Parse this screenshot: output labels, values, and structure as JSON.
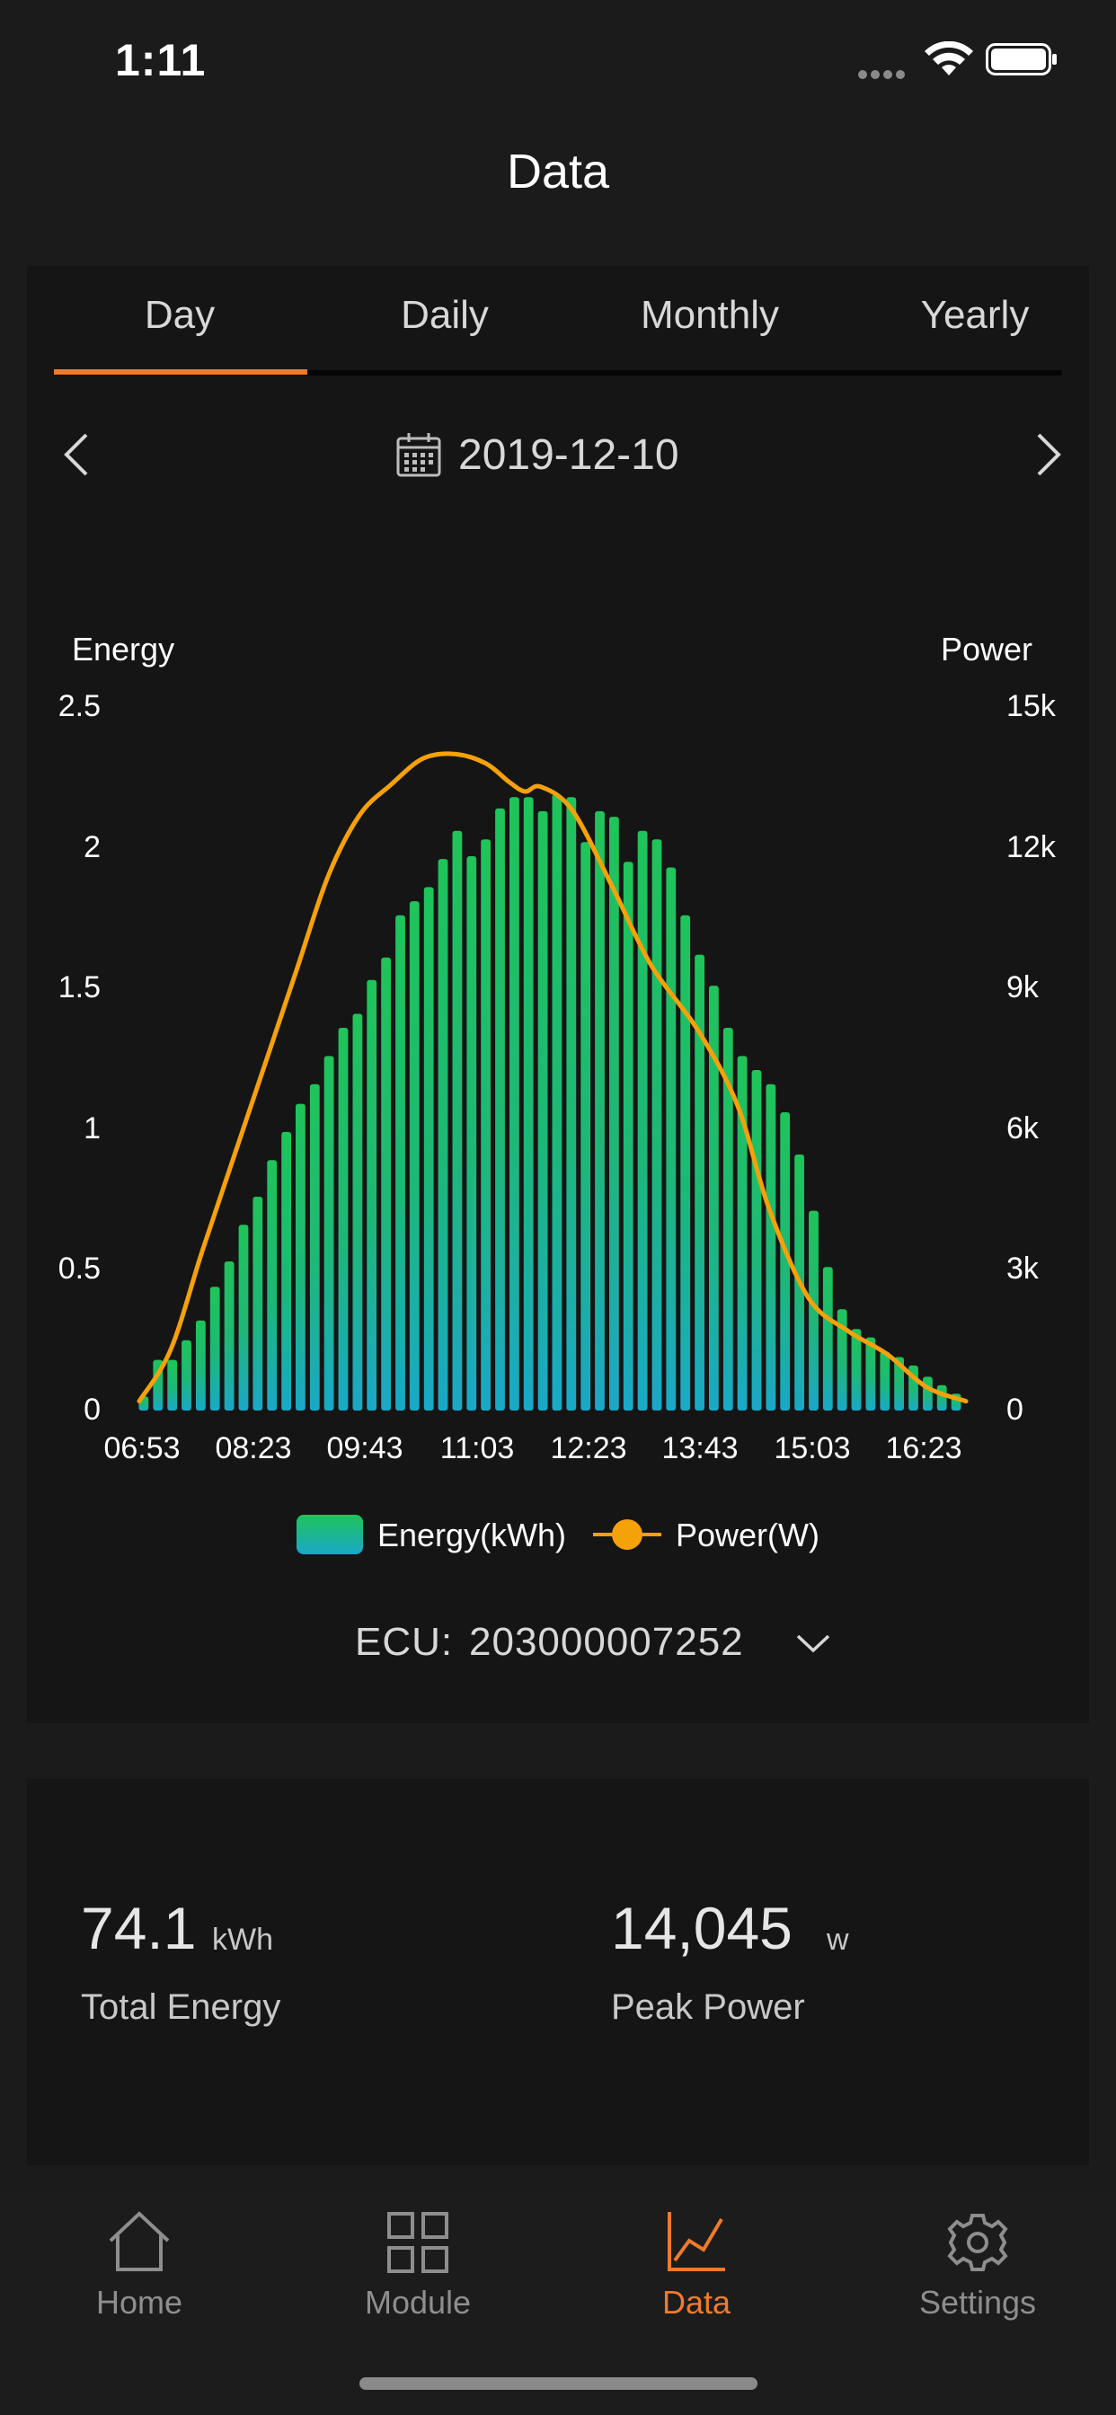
{
  "status_bar": {
    "time": "1:11"
  },
  "header": {
    "title": "Data"
  },
  "tabs": [
    {
      "label": "Day",
      "active": true
    },
    {
      "label": "Daily",
      "active": false
    },
    {
      "label": "Monthly",
      "active": false
    },
    {
      "label": "Yearly",
      "active": false
    }
  ],
  "date_selector": {
    "date": "2019-12-10"
  },
  "chart_data": {
    "type": "bar",
    "left_axis_title": "Energy",
    "right_axis_title": "Power",
    "left_ticks": [
      "0",
      "0.5",
      "1",
      "1.5",
      "2",
      "2.5"
    ],
    "right_ticks": [
      "0",
      "3k",
      "6k",
      "9k",
      "12k",
      "15k"
    ],
    "x_ticks": [
      "06:53",
      "08:23",
      "09:43",
      "11:03",
      "12:23",
      "13:43",
      "15:03",
      "16:23"
    ],
    "ylim_left": [
      0,
      2.5
    ],
    "ylim_right": [
      0,
      15000
    ],
    "series": [
      {
        "name": "Energy(kWh)",
        "type": "bar",
        "axis": "left",
        "values": [
          0.05,
          0.18,
          0.18,
          0.25,
          0.32,
          0.44,
          0.53,
          0.66,
          0.76,
          0.89,
          0.99,
          1.09,
          1.16,
          1.26,
          1.36,
          1.41,
          1.53,
          1.61,
          1.76,
          1.81,
          1.86,
          1.96,
          2.06,
          1.97,
          2.03,
          2.14,
          2.18,
          2.18,
          2.13,
          2.19,
          2.18,
          2.02,
          2.13,
          2.11,
          1.95,
          2.06,
          2.03,
          1.93,
          1.76,
          1.62,
          1.51,
          1.36,
          1.26,
          1.21,
          1.16,
          1.06,
          0.91,
          0.71,
          0.51,
          0.36,
          0.29,
          0.26,
          0.21,
          0.19,
          0.16,
          0.12,
          0.09,
          0.06
        ]
      },
      {
        "name": "Power(W)",
        "type": "line",
        "axis": "right",
        "points": [
          [
            0,
            200
          ],
          [
            4,
            1300
          ],
          [
            8,
            3400
          ],
          [
            12,
            5400
          ],
          [
            16,
            7400
          ],
          [
            20,
            9400
          ],
          [
            24,
            11400
          ],
          [
            28,
            12700
          ],
          [
            32,
            13350
          ],
          [
            36,
            13900
          ],
          [
            40,
            14000
          ],
          [
            44,
            13800
          ],
          [
            47,
            13400
          ],
          [
            49,
            13200
          ],
          [
            51,
            13300
          ],
          [
            55,
            12800
          ],
          [
            60,
            11200
          ],
          [
            65,
            9500
          ],
          [
            71,
            8100
          ],
          [
            76,
            6500
          ],
          [
            80,
            4300
          ],
          [
            85,
            2400
          ],
          [
            90,
            1700
          ],
          [
            95,
            1200
          ],
          [
            100,
            500
          ],
          [
            105,
            200
          ]
        ]
      }
    ],
    "colors": {
      "bar_top": "#1fc45a",
      "bar_bottom": "#1aa8c8",
      "line": "#f5a10a"
    }
  },
  "legend": {
    "energy": "Energy(kWh)",
    "power": "Power(W)"
  },
  "ecu": {
    "label": "ECU:",
    "value": "203000007252"
  },
  "summary": {
    "total_energy_value": "74.1",
    "total_energy_unit": "kWh",
    "total_energy_label": "Total Energy",
    "peak_power_value": "14,045",
    "peak_power_unit": "w",
    "peak_power_label": "Peak Power"
  },
  "tab_bar": [
    {
      "label": "Home",
      "icon": "house-icon",
      "active": false
    },
    {
      "label": "Module",
      "icon": "grid-icon",
      "active": false
    },
    {
      "label": "Data",
      "icon": "line-chart-icon",
      "active": true
    },
    {
      "label": "Settings",
      "icon": "gear-icon",
      "active": false
    }
  ],
  "accent_color": "#f07a2b"
}
